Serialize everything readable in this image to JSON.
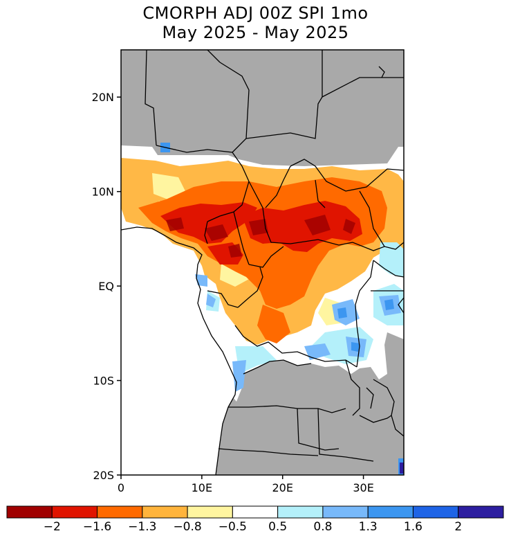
{
  "title": {
    "line1": "CMORPH ADJ 00Z SPI 1mo",
    "line2": "May 2025 - May 2025"
  },
  "map": {
    "region": "Central Africa",
    "lon_range": [
      0,
      35
    ],
    "lat_range": [
      -20,
      25
    ],
    "lat_ticks": [
      {
        "value": 20,
        "label": "20N"
      },
      {
        "value": 10,
        "label": "10N"
      },
      {
        "value": 0,
        "label": "EQ"
      },
      {
        "value": -10,
        "label": "10S"
      },
      {
        "value": -20,
        "label": "20S"
      }
    ],
    "lon_ticks": [
      {
        "value": 0,
        "label": "0"
      },
      {
        "value": 10,
        "label": "10E"
      },
      {
        "value": 20,
        "label": "20E"
      },
      {
        "value": 30,
        "label": "30E"
      }
    ],
    "colors": {
      "no_data": "#a9a9a9",
      "ocean": "#ffffff",
      "border": "#000000"
    }
  },
  "legend": {
    "labels": [
      "-2",
      "-1.6",
      "-1.3",
      "-0.8",
      "-0.5",
      "0.5",
      "0.8",
      "1.3",
      "1.6",
      "2"
    ],
    "colors": [
      "#a00000",
      "#e01400",
      "#ff6a00",
      "#ffb43c",
      "#fff5a0",
      "#ffffff",
      "#b4f0fa",
      "#78b9fa",
      "#3c96f0",
      "#1e64e6",
      "#2d1ea0"
    ]
  }
}
